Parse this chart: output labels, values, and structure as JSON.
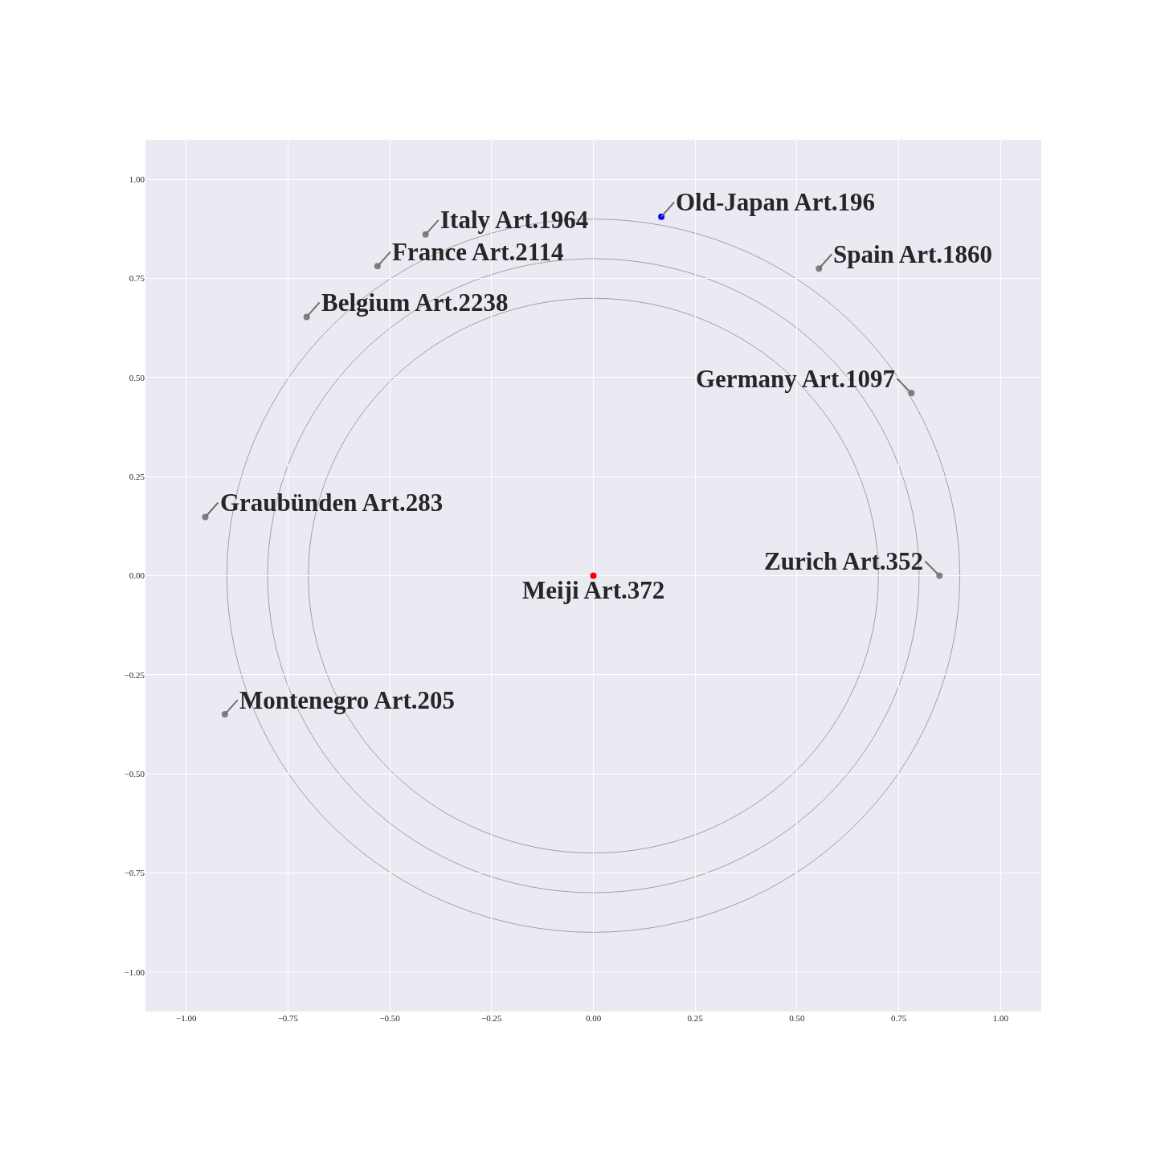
{
  "chart_data": {
    "type": "scatter",
    "xlim": [
      -1.1,
      1.1
    ],
    "ylim": [
      -1.1,
      1.1
    ],
    "xticks": [
      {
        "value": -1,
        "label": "−1.00"
      },
      {
        "value": -0.75,
        "label": "−0.75"
      },
      {
        "value": -0.5,
        "label": "−0.50"
      },
      {
        "value": -0.25,
        "label": "−0.25"
      },
      {
        "value": 0,
        "label": "0.00"
      },
      {
        "value": 0.25,
        "label": "0.25"
      },
      {
        "value": 0.5,
        "label": "0.50"
      },
      {
        "value": 0.75,
        "label": "0.75"
      },
      {
        "value": 1,
        "label": "1.00"
      }
    ],
    "yticks": [
      {
        "value": -1,
        "label": "−1.00"
      },
      {
        "value": -0.75,
        "label": "−0.75"
      },
      {
        "value": -0.5,
        "label": "−0.50"
      },
      {
        "value": -0.25,
        "label": "−0.25"
      },
      {
        "value": 0,
        "label": "0.00"
      },
      {
        "value": 0.25,
        "label": "0.25"
      },
      {
        "value": 0.5,
        "label": "0.50"
      },
      {
        "value": 0.75,
        "label": "0.75"
      },
      {
        "value": 1,
        "label": "1.00"
      }
    ],
    "grid": true,
    "series": [
      {
        "marker": "circle",
        "x": [
          0.167,
          -0.412,
          -0.53,
          0.554,
          -0.704,
          0.781,
          -0.953,
          0.85,
          0,
          -0.905
        ],
        "values": [
          0.906,
          0.861,
          0.781,
          0.775,
          0.653,
          0.461,
          0.148,
          0,
          0,
          -0.35
        ],
        "colors": [
          "#0000ff",
          "#808080",
          "#808080",
          "#808080",
          "#808080",
          "#808080",
          "#808080",
          "#808080",
          "#ff0000",
          "#808080"
        ]
      }
    ],
    "annotations": [
      {
        "text": "Old-Japan Art.196",
        "x": 0.167,
        "y": 0.906
      },
      {
        "text": "Italy Art.1964",
        "x": -0.412,
        "y": 0.861
      },
      {
        "text": "France Art.2114",
        "x": -0.53,
        "y": 0.781
      },
      {
        "text": "Spain Art.1860",
        "x": 0.554,
        "y": 0.775
      },
      {
        "text": "Belgium Art.2238",
        "x": -0.704,
        "y": 0.653
      },
      {
        "text": "Germany Art.1097",
        "x": 0.781,
        "y": 0.461
      },
      {
        "text": "Graubünden Art.283",
        "x": -0.953,
        "y": 0.148
      },
      {
        "text": "Zurich Art.352",
        "x": 0.85,
        "y": 0
      },
      {
        "text": "Meiji Art.372",
        "x": 0,
        "y": 0
      },
      {
        "text": "Montenegro Art.205",
        "x": -0.905,
        "y": -0.35
      }
    ]
  }
}
